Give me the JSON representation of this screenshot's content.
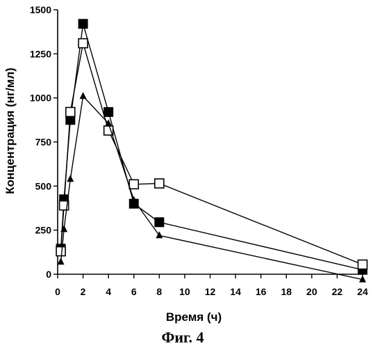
{
  "chart_data": {
    "type": "line",
    "title": "",
    "caption": "Фиг. 4",
    "xlabel": "Время (ч)",
    "ylabel": "Концентрация (нг/мл)",
    "xlim": [
      0,
      24
    ],
    "ylim": [
      0,
      1500
    ],
    "x_ticks": [
      0,
      2,
      4,
      6,
      8,
      10,
      12,
      14,
      16,
      18,
      20,
      22,
      24
    ],
    "y_ticks": [
      0,
      250,
      500,
      750,
      1000,
      1250,
      1500
    ],
    "grid": false,
    "legend": "none",
    "series": [
      {
        "marker": "filled-square",
        "color": "#000000",
        "x": [
          0.25,
          0.5,
          1,
          2,
          4,
          6,
          8,
          24
        ],
        "y": [
          145,
          425,
          875,
          1420,
          920,
          400,
          295,
          25
        ]
      },
      {
        "marker": "open-square",
        "color": "#000000",
        "x": [
          0.25,
          0.5,
          1,
          2,
          4,
          6,
          8,
          24
        ],
        "y": [
          130,
          390,
          920,
          1310,
          815,
          510,
          515,
          55
        ]
      },
      {
        "marker": "filled-triangle",
        "color": "#000000",
        "x": [
          0.25,
          0.5,
          1,
          2,
          4,
          6,
          8,
          24
        ],
        "y": [
          70,
          255,
          540,
          1010,
          855,
          420,
          220,
          -30
        ]
      }
    ]
  }
}
